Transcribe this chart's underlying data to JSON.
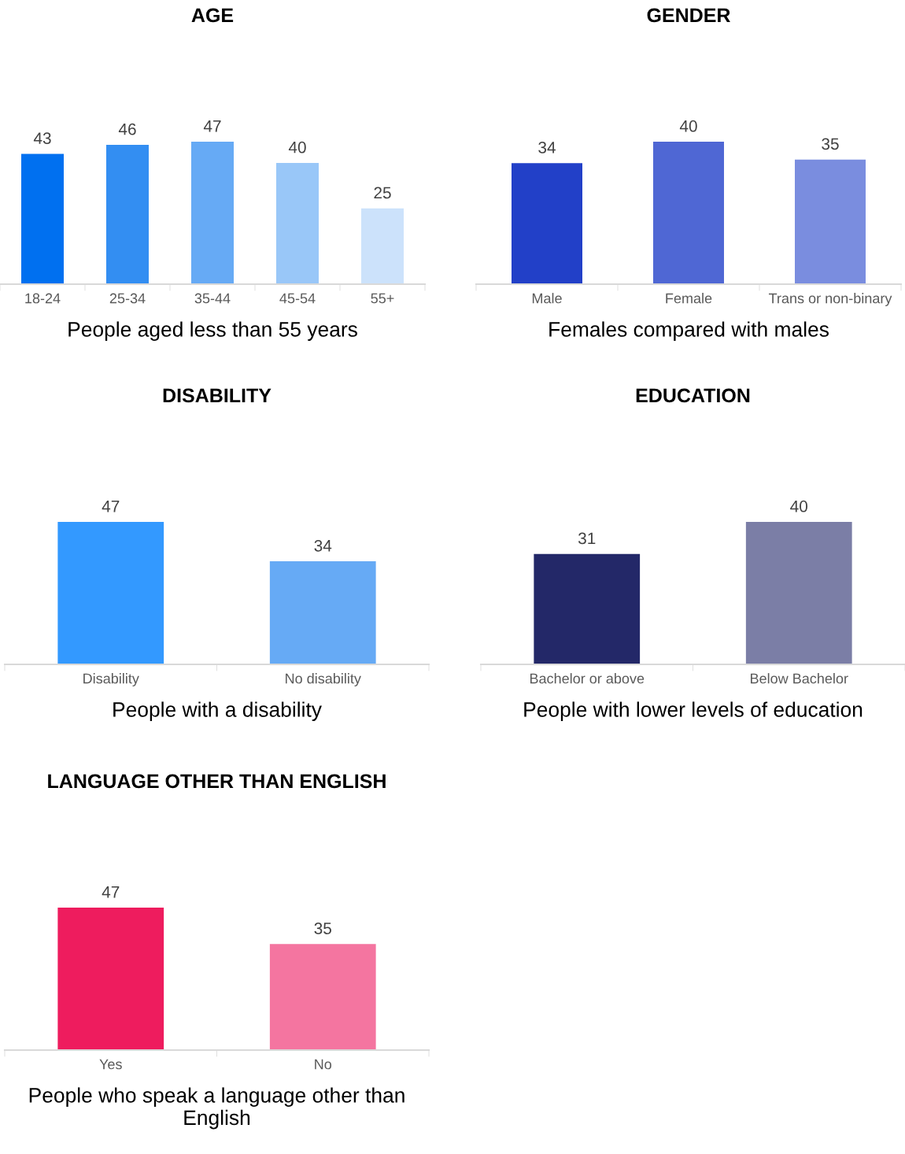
{
  "chart_data": [
    {
      "type": "bar",
      "title": "AGE",
      "xlabel": "People aged less than 55 years",
      "categories": [
        "18-24",
        "25-34",
        "35-44",
        "45-54",
        "55+"
      ],
      "values": [
        43,
        46,
        47,
        40,
        25
      ],
      "colors": [
        "#0070f0",
        "#338ef2",
        "#66aaf5",
        "#99c7f8",
        "#cce2fb"
      ],
      "data_labels": true,
      "tick_labels": "x",
      "grid": false,
      "legend": false
    },
    {
      "type": "bar",
      "title": "GENDER",
      "xlabel": "Females compared with males",
      "categories": [
        "Male",
        "Female",
        "Trans or non-binary"
      ],
      "values": [
        34,
        40,
        35
      ],
      "colors": [
        "#2240c8",
        "#4f67d4",
        "#7a8ddf"
      ],
      "data_labels": true,
      "tick_labels": "x",
      "grid": false,
      "legend": false
    },
    {
      "type": "bar",
      "title": "DISABILITY",
      "xlabel": "People with a disability",
      "categories": [
        "Disability",
        "No disability"
      ],
      "values": [
        47,
        34
      ],
      "colors": [
        "#3399ff",
        "#66aaf5"
      ],
      "data_labels": true,
      "tick_labels": "x",
      "grid": false,
      "legend": false
    },
    {
      "type": "bar",
      "title": "EDUCATION",
      "xlabel": "People with lower levels of education",
      "categories": [
        "Bachelor or above",
        "Below Bachelor"
      ],
      "values": [
        31,
        40
      ],
      "colors": [
        "#232868",
        "#7b7ea6"
      ],
      "data_labels": true,
      "tick_labels": "x",
      "grid": false,
      "legend": false
    },
    {
      "type": "bar",
      "title": "LANGUAGE OTHER THAN ENGLISH",
      "xlabel": "People who speak a language other than English",
      "categories": [
        "Yes",
        "No"
      ],
      "values": [
        47,
        35
      ],
      "colors": [
        "#ee1c5e",
        "#f475a0"
      ],
      "data_labels": true,
      "tick_labels": "x",
      "grid": false,
      "legend": false
    }
  ]
}
